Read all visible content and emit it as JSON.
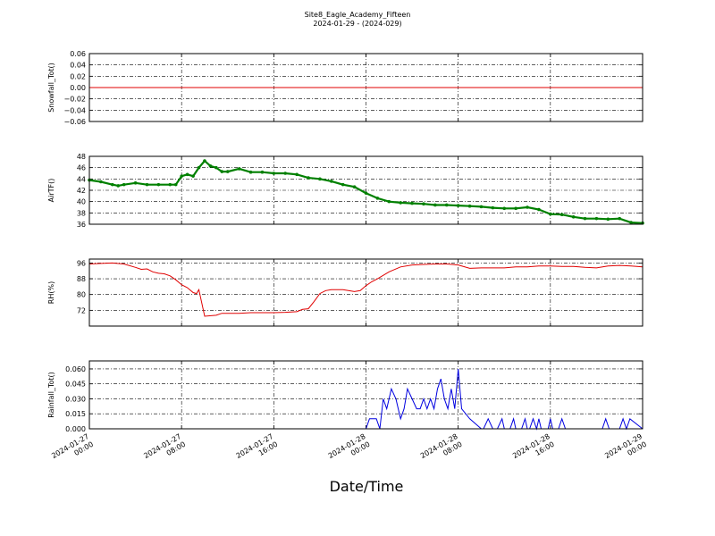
{
  "figure": {
    "title": "Site8_Eagle_Academy_Fifteen",
    "subtitle": "2024-01-29 - (2024-029)",
    "xlabel": "Date/Time"
  },
  "chart_data": [
    {
      "type": "line",
      "ylabel": "Snowfall_Tot()",
      "ylim": [
        -0.06,
        0.06
      ],
      "yticks": [
        "0.06",
        "0.04",
        "0.02",
        "0.00",
        "−0.02",
        "−0.04",
        "−0.06"
      ],
      "ytick_values": [
        0.06,
        0.04,
        0.02,
        0.0,
        -0.02,
        -0.04,
        -0.06
      ],
      "xlim_hours": [
        0,
        48
      ],
      "grid": true,
      "series": [
        {
          "color": "#e00000",
          "marker": "none",
          "x_hours": [
            0,
            48
          ],
          "y": [
            0,
            0
          ]
        }
      ]
    },
    {
      "type": "line",
      "ylabel": "AirTF()",
      "ylim": [
        36,
        48
      ],
      "yticks": [
        "48",
        "46",
        "44",
        "42",
        "40",
        "38",
        "36"
      ],
      "ytick_values": [
        48,
        46,
        44,
        42,
        40,
        38,
        36
      ],
      "xlim_hours": [
        0,
        48
      ],
      "grid": true,
      "series": [
        {
          "color": "#008000",
          "marker": "dot",
          "x_hours": [
            0,
            1,
            2,
            2.5,
            3,
            4,
            5,
            6,
            7,
            7.5,
            8,
            8.5,
            9,
            9.5,
            10,
            10.5,
            11,
            11.5,
            12,
            13,
            14,
            15,
            16,
            17,
            18,
            19,
            20,
            21,
            22,
            23,
            24,
            25,
            26,
            27,
            28,
            29,
            30,
            31,
            32,
            33,
            34,
            35,
            36,
            37,
            38,
            39,
            40,
            41,
            42,
            43,
            44,
            45,
            46,
            47,
            48
          ],
          "y": [
            43.8,
            43.5,
            43.0,
            42.8,
            43.0,
            43.3,
            43.0,
            43.0,
            43.0,
            43.0,
            44.5,
            44.8,
            44.5,
            46.0,
            47.2,
            46.3,
            46.0,
            45.3,
            45.3,
            45.8,
            45.2,
            45.2,
            45.0,
            45.0,
            44.8,
            44.2,
            44.0,
            43.6,
            43.0,
            42.6,
            41.5,
            40.6,
            40.0,
            39.8,
            39.7,
            39.6,
            39.4,
            39.4,
            39.3,
            39.2,
            39.1,
            38.9,
            38.8,
            38.8,
            39.0,
            38.6,
            37.8,
            37.7,
            37.3,
            37.0,
            37.0,
            36.9,
            37.0,
            36.3,
            36.2
          ]
        }
      ]
    },
    {
      "type": "line",
      "ylabel": "RH(%)",
      "ylim": [
        64,
        98
      ],
      "yticks": [
        "96",
        "88",
        "80",
        "72"
      ],
      "ytick_values": [
        96,
        88,
        80,
        72
      ],
      "xlim_hours": [
        0,
        48
      ],
      "grid": true,
      "series": [
        {
          "color": "#e00000",
          "marker": "none",
          "x_hours": [
            0,
            1,
            2,
            3,
            4,
            4.5,
            5,
            5.5,
            6,
            6.5,
            7,
            7.5,
            8,
            8.5,
            9,
            9.3,
            9.5,
            10,
            11,
            11.5,
            12,
            13,
            14,
            15,
            16,
            17,
            18,
            18.5,
            19,
            19.5,
            20,
            20.5,
            21,
            22,
            23,
            23.5,
            24,
            24.5,
            25,
            26,
            27,
            28,
            29,
            30,
            31,
            32,
            33,
            34,
            35,
            36,
            37,
            38,
            39,
            40,
            41,
            42,
            43,
            44,
            45,
            46,
            47,
            48
          ],
          "y": [
            95.5,
            95.8,
            96.0,
            95.5,
            93.8,
            92.8,
            93.0,
            91.5,
            90.8,
            90.5,
            89.5,
            87.5,
            85.0,
            83.5,
            81.0,
            80.5,
            82.5,
            69.0,
            69.5,
            70.5,
            70.5,
            70.5,
            70.8,
            70.8,
            70.8,
            71.0,
            71.3,
            72.5,
            72.8,
            76.5,
            80.5,
            82.0,
            82.5,
            82.5,
            81.5,
            82.0,
            84.5,
            86.5,
            88.0,
            91.5,
            94.0,
            95.0,
            95.3,
            95.5,
            95.5,
            95.0,
            93.3,
            93.5,
            93.5,
            93.5,
            94.0,
            94.0,
            94.5,
            94.5,
            94.3,
            94.3,
            93.8,
            93.5,
            94.5,
            94.8,
            94.5,
            94.0
          ]
        }
      ]
    },
    {
      "type": "line",
      "ylabel": "Rainfall_Tot()",
      "ylim": [
        0,
        0.068
      ],
      "yticks": [
        "0.060",
        "0.045",
        "0.030",
        "0.015",
        "0.000"
      ],
      "ytick_values": [
        0.06,
        0.045,
        0.03,
        0.015,
        0.0
      ],
      "xlim_hours": [
        0,
        48
      ],
      "xticks": [
        "2024-01-27\n00:00",
        "2024-01-27\n08:00",
        "2024-01-27\n16:00",
        "2024-01-28\n00:00",
        "2024-01-28\n08:00",
        "2024-01-28\n16:00",
        "2024-01-29\n00:00"
      ],
      "xtick_hours": [
        0,
        8,
        16,
        24,
        32,
        40,
        48
      ],
      "grid": true,
      "series": [
        {
          "color": "#0000e0",
          "marker": "none",
          "x_hours": [
            0,
            24,
            24.3,
            24.9,
            25.2,
            25.5,
            25.8,
            26.2,
            26.6,
            27.0,
            27.3,
            27.6,
            28.0,
            28.4,
            28.7,
            29.0,
            29.3,
            29.6,
            29.9,
            30.2,
            30.5,
            30.8,
            31.1,
            31.4,
            31.7,
            32.0,
            32.3,
            33.0,
            34.0,
            34.2,
            34.6,
            35.0,
            35.2,
            35.4,
            35.8,
            36.0,
            36.2,
            36.5,
            36.8,
            37.0,
            37.2,
            37.5,
            37.8,
            38.0,
            38.2,
            38.5,
            38.8,
            39.0,
            39.2,
            39.5,
            39.8,
            40.0,
            40.2,
            40.7,
            41.0,
            41.3,
            44.5,
            44.8,
            45.1,
            46.0,
            46.3,
            46.6,
            46.9,
            48
          ],
          "y": [
            0,
            0,
            0.01,
            0.01,
            0,
            0.03,
            0.02,
            0.04,
            0.03,
            0.01,
            0.02,
            0.04,
            0.03,
            0.02,
            0.02,
            0.03,
            0.02,
            0.03,
            0.02,
            0.04,
            0.05,
            0.03,
            0.02,
            0.04,
            0.02,
            0.06,
            0.02,
            0.01,
            0,
            0,
            0.01,
            0,
            0,
            0,
            0.01,
            0,
            0,
            0,
            0.01,
            0,
            0,
            0,
            0.01,
            0,
            0,
            0.01,
            0,
            0.01,
            0,
            0,
            0,
            0.01,
            0,
            0,
            0.01,
            0,
            0,
            0.01,
            0,
            0,
            0.01,
            0,
            0.01,
            0
          ]
        }
      ]
    }
  ]
}
